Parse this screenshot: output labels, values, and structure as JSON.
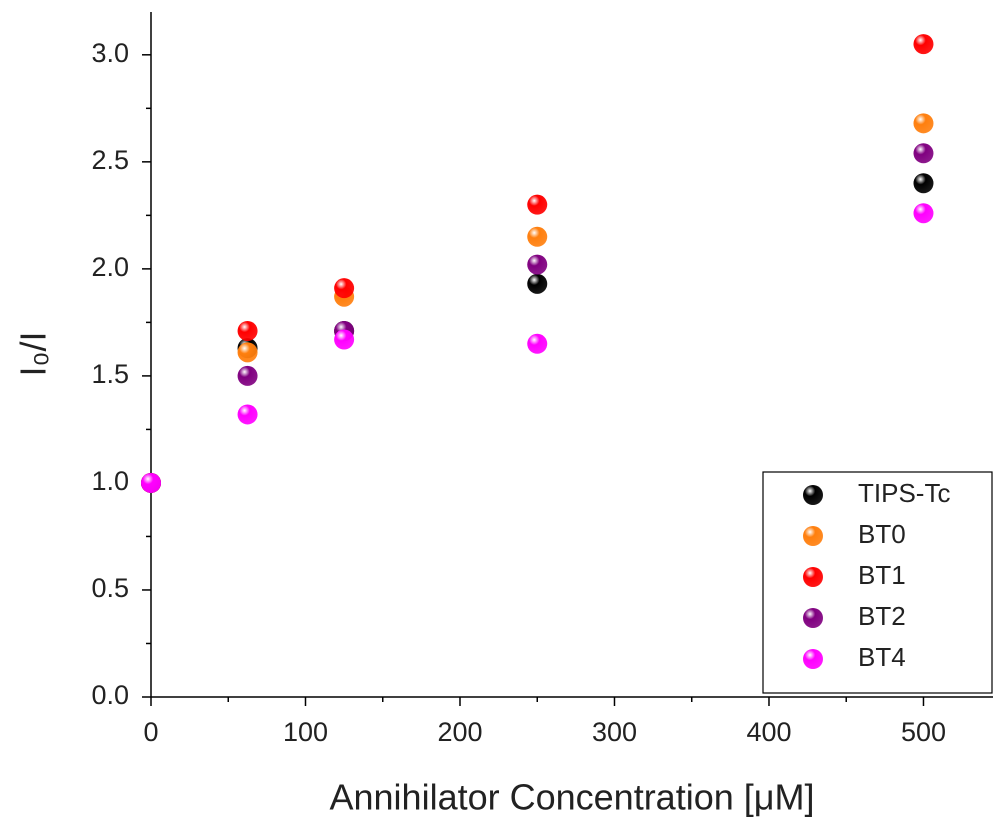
{
  "chart_data": {
    "type": "scatter",
    "x_label": "Annihilator Concentration [μM]",
    "y_label": "I₀/I",
    "x": [
      0,
      62.5,
      125,
      250,
      500
    ],
    "series": [
      {
        "name": "TIPS-Tc",
        "color": "#000000",
        "values": [
          1.0,
          1.63,
          1.71,
          1.93,
          2.4
        ]
      },
      {
        "name": "BT0",
        "color": "#ff7f0e",
        "values": [
          1.0,
          1.61,
          1.87,
          2.15,
          2.68
        ]
      },
      {
        "name": "BT1",
        "color": "#ff0000",
        "values": [
          1.0,
          1.71,
          1.91,
          2.3,
          3.05
        ]
      },
      {
        "name": "BT2",
        "color": "#800080",
        "values": [
          1.0,
          1.5,
          1.71,
          2.02,
          2.54
        ]
      },
      {
        "name": "BT4",
        "color": "#ff00ff",
        "values": [
          1.0,
          1.32,
          1.67,
          1.65,
          2.26
        ]
      }
    ],
    "xlim": [
      0,
      545
    ],
    "ylim": [
      0,
      3.2
    ],
    "xticks": [
      0,
      100,
      200,
      300,
      400,
      500
    ],
    "xminorticks": [
      50,
      150,
      250,
      350,
      450
    ],
    "yticks": [
      {
        "value": 0,
        "label": "0.0"
      },
      0.5,
      {
        "value": 1,
        "label": "1.0"
      },
      1.5,
      {
        "value": 2,
        "label": "2.0"
      },
      2.5,
      {
        "value": 3,
        "label": "3.0"
      }
    ],
    "yminorticks": [
      0.25,
      0.75,
      1.25,
      1.75,
      2.25,
      2.75
    ],
    "legend": "lower right",
    "grid": false
  }
}
